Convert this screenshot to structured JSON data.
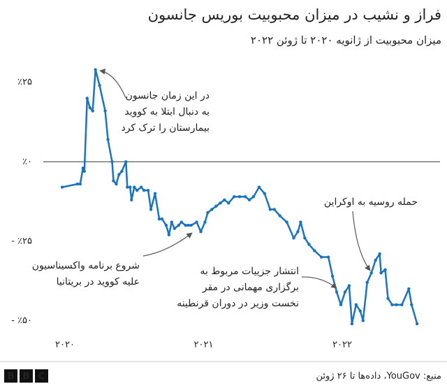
{
  "chart_data": {
    "type": "line",
    "title": "فراز و نشیب در میزان محبوبیت بوریس جانسون",
    "subtitle": "میزان محبوبیت از ژانویه ۲۰۲۰ تا ژوئن ۲۰۲۲",
    "xlim": [
      2019.93,
      2022.6
    ],
    "xticks": [
      {
        "value": 2020,
        "label": "۲۰۲۰"
      },
      {
        "value": 2021,
        "label": "۲۰۲۱"
      },
      {
        "value": 2022,
        "label": "۲۰۲۲"
      }
    ],
    "ylim": [
      -53,
      30
    ],
    "yticks": [
      {
        "value": 25,
        "label": "٪۲۵"
      },
      {
        "value": 0,
        "label": "٪۰"
      },
      {
        "value": -25,
        "label": "- ٪۲۵"
      },
      {
        "value": -50,
        "label": "- ٪۵۰"
      }
    ],
    "grid": false,
    "zero_line": true,
    "x": [
      2019.98,
      2020.09,
      2020.11,
      2020.13,
      2020.14,
      2020.16,
      2020.18,
      2020.2,
      2020.22,
      2020.25,
      2020.29,
      2020.31,
      2020.34,
      2020.35,
      2020.37,
      2020.39,
      2020.41,
      2020.44,
      2020.45,
      2020.47,
      2020.48,
      2020.5,
      2020.52,
      2020.55,
      2020.57,
      2020.6,
      2020.62,
      2020.65,
      2020.68,
      2020.7,
      2020.73,
      2020.75,
      2020.77,
      2020.79,
      2020.82,
      2020.84,
      2020.87,
      2020.89,
      2020.91,
      2020.95,
      2020.98,
      2021.01,
      2021.03,
      2021.06,
      2021.09,
      2021.12,
      2021.15,
      2021.18,
      2021.22,
      2021.26,
      2021.3,
      2021.33,
      2021.36,
      2021.4,
      2021.44,
      2021.48,
      2021.51,
      2021.55,
      2021.6,
      2021.65,
      2021.68,
      2021.7,
      2021.73,
      2021.76,
      2021.8,
      2021.85,
      2021.9,
      2021.93,
      2021.96,
      2021.99,
      2022.02,
      2022.05,
      2022.07,
      2022.1,
      2022.13,
      2022.15,
      2022.18,
      2022.21,
      2022.24,
      2022.27,
      2022.28,
      2022.31,
      2022.33,
      2022.36,
      2022.39,
      2022.43,
      2022.48,
      2022.5,
      2022.54
    ],
    "series": [
      {
        "name": "محبوبیت",
        "color": "#1a73c0",
        "values": [
          -8,
          -7,
          -7,
          -2,
          -3,
          20,
          17,
          16,
          29,
          24,
          16,
          7,
          0,
          -6,
          -7,
          -4,
          -3,
          0,
          -8,
          -8,
          -12,
          -8,
          -9,
          -8,
          -9,
          -9,
          -15,
          -10,
          -18,
          -18,
          -20,
          -23,
          -19,
          -21,
          -20,
          -19,
          -20,
          -20,
          -20,
          -19,
          -22,
          -19,
          -16,
          -15,
          -14,
          -13,
          -12,
          -13,
          -11,
          -11,
          -11,
          -12,
          -11,
          -8,
          -10,
          -15,
          -15,
          -17,
          -19,
          -24,
          -22,
          -19,
          -24,
          -26,
          -28,
          -30,
          -30,
          -36,
          -41,
          -45,
          -41,
          -39,
          -51,
          -45,
          -47,
          -50,
          -38,
          -35,
          -31,
          -29,
          -35,
          -34,
          -43,
          -45,
          -45,
          -45,
          -40,
          -45,
          -51
        ]
      }
    ],
    "annotations": [
      [
        "در این زمان جانسون",
        "به دنبال ابتلا به کووید",
        "بیمارستان را ترک کرد"
      ],
      [
        "شروع برنامه واکسیناسیون",
        "علیه کووید در بریتانیا"
      ],
      [
        "حمله روسیه به اوکراین"
      ],
      [
        "انتشار جزییات مربوط به",
        "برگزاری مهمانی در مقر",
        "نخست وزیر در دوران قرنطینه"
      ]
    ]
  },
  "footer": {
    "source": "منبع: YouGov، داده‌ها تا ۲۶ ژوئن",
    "logo": [
      "B",
      "B",
      "C"
    ]
  }
}
